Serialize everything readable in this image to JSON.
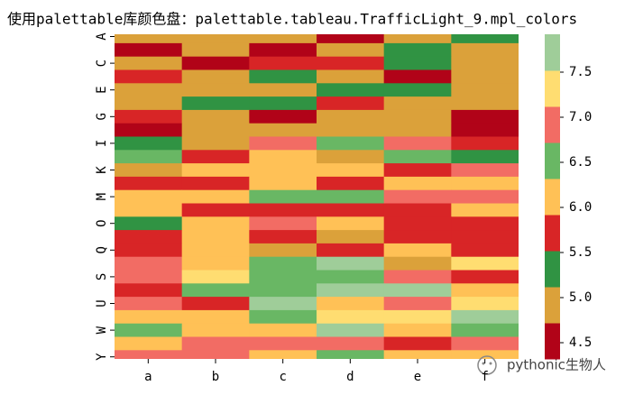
{
  "chart_data": {
    "type": "heatmap",
    "title": "使用palettable库颜色盘：palettable.tableau.TrafficLight_9.mpl_colors",
    "columns": [
      "a",
      "b",
      "c",
      "d",
      "e",
      "f"
    ],
    "rows": [
      "A",
      null,
      "C",
      null,
      "E",
      null,
      "G",
      null,
      "I",
      null,
      "K",
      null,
      "M",
      null,
      "O",
      null,
      "Q",
      null,
      "S",
      null,
      "U",
      null,
      "W",
      null,
      "Y"
    ],
    "values": [
      [
        4.9,
        4.9,
        4.9,
        4.5,
        4.9,
        5.3
      ],
      [
        4.5,
        4.9,
        4.5,
        4.9,
        5.3,
        4.9
      ],
      [
        4.9,
        4.5,
        5.7,
        5.7,
        5.3,
        4.9
      ],
      [
        5.7,
        4.9,
        5.3,
        4.9,
        4.5,
        4.9
      ],
      [
        4.9,
        4.9,
        4.9,
        5.3,
        5.3,
        4.9
      ],
      [
        4.9,
        5.3,
        5.3,
        5.7,
        4.9,
        4.9
      ],
      [
        5.7,
        4.9,
        4.5,
        4.9,
        4.9,
        4.5
      ],
      [
        4.5,
        4.9,
        4.9,
        4.9,
        4.9,
        4.5
      ],
      [
        5.3,
        4.9,
        6.9,
        6.5,
        6.9,
        5.7
      ],
      [
        6.5,
        5.7,
        6.1,
        4.9,
        6.5,
        5.3
      ],
      [
        4.9,
        6.1,
        6.1,
        6.1,
        5.7,
        6.9
      ],
      [
        5.7,
        5.7,
        6.1,
        5.7,
        6.1,
        6.1
      ],
      [
        6.1,
        6.1,
        6.5,
        6.5,
        6.9,
        6.9
      ],
      [
        6.1,
        5.7,
        5.7,
        5.7,
        5.7,
        6.1
      ],
      [
        5.3,
        6.1,
        6.9,
        6.1,
        5.7,
        5.7
      ],
      [
        5.7,
        6.1,
        5.7,
        4.9,
        5.7,
        5.7
      ],
      [
        5.7,
        6.1,
        4.9,
        5.7,
        6.1,
        5.7
      ],
      [
        6.9,
        6.1,
        6.5,
        7.7,
        4.9,
        7.3
      ],
      [
        6.9,
        7.3,
        6.5,
        6.5,
        6.9,
        5.7
      ],
      [
        5.7,
        6.5,
        6.5,
        7.7,
        7.7,
        6.1
      ],
      [
        6.9,
        5.7,
        7.7,
        6.1,
        6.9,
        7.3
      ],
      [
        6.1,
        6.1,
        6.5,
        7.3,
        7.3,
        7.7
      ],
      [
        6.5,
        6.1,
        6.1,
        7.7,
        6.1,
        6.5
      ],
      [
        6.1,
        6.9,
        6.9,
        6.9,
        5.7,
        6.9
      ],
      [
        6.9,
        6.9,
        6.1,
        6.5,
        6.1,
        6.1
      ]
    ],
    "colors": [
      "#B10318",
      "#DBA13A",
      "#309343",
      "#D82526",
      "#FFC156",
      "#69B764",
      "#F26C64",
      "#FFDD71",
      "#9FCD99"
    ],
    "clim": [
      4.32,
      7.92
    ],
    "cticks": [
      4.5,
      5.0,
      5.5,
      6.0,
      6.5,
      7.0,
      7.5
    ],
    "watermark": "pythonic生物人"
  }
}
